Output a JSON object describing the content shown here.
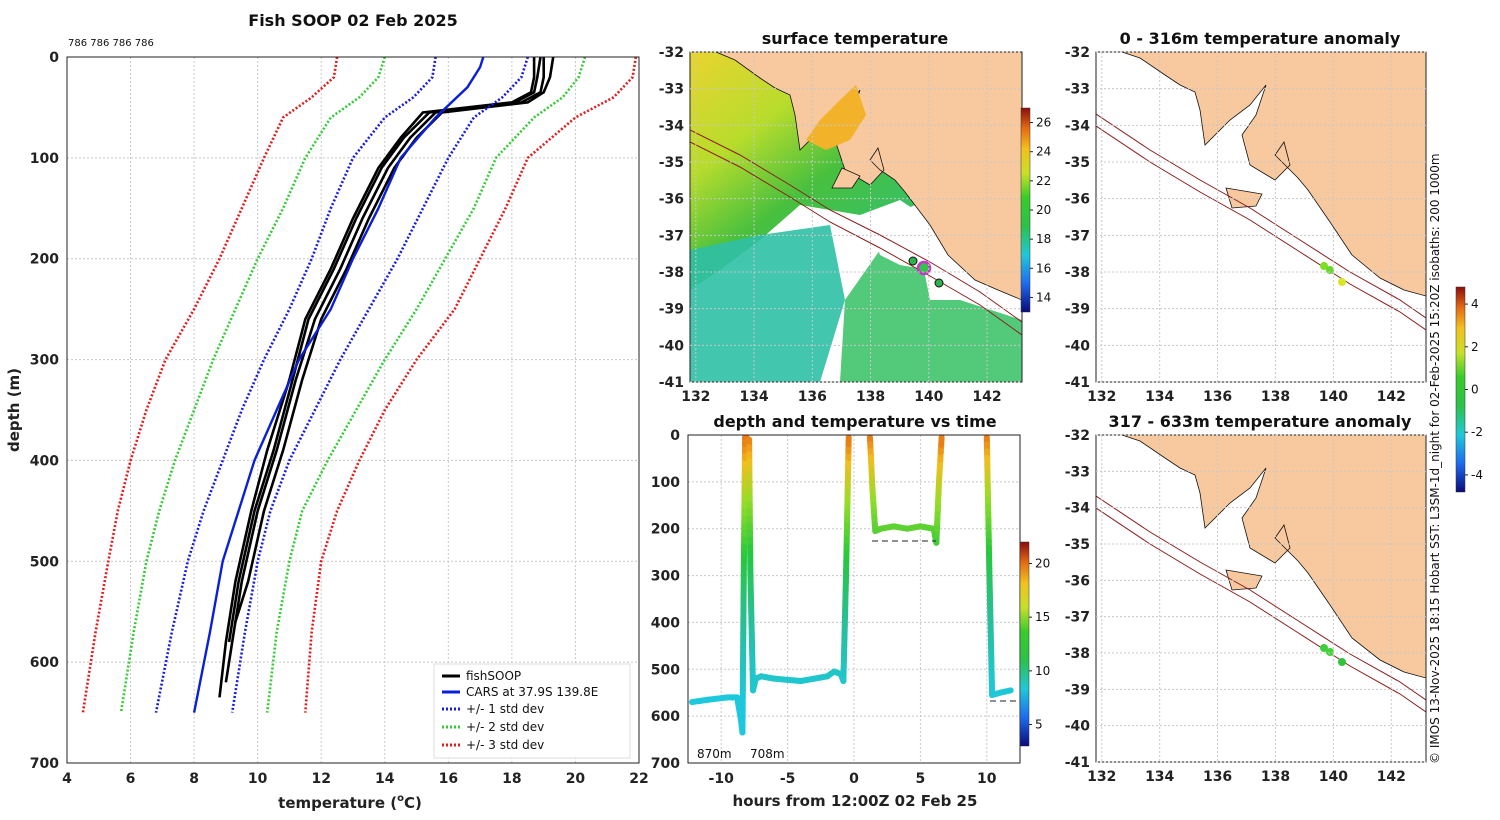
{
  "colors": {
    "land": "#f8c99e",
    "ocean_warm": "#d6e12b",
    "ocean_mid": "#33c24a",
    "ocean_cool": "#2fc6b9",
    "isobath": "#8b1a1a",
    "fish": "#000000",
    "cars": "#0a1fd8",
    "std1": "#1a1ae6",
    "std2": "#33cc33",
    "std3": "#e61a1a",
    "marker": "#cc33cc"
  },
  "profile": {
    "title": "Fish SOOP 02 Feb 2025",
    "ids": "786 786 786 786",
    "xlabel_prefix": "temperature (",
    "xlabel_sup": "o",
    "xlabel_suffix": "C)",
    "ylabel": "depth (m)",
    "xlim": [
      4,
      22
    ],
    "ylim": [
      0,
      700
    ],
    "xticks": [
      "4",
      "6",
      "8",
      "10",
      "12",
      "14",
      "16",
      "18",
      "20",
      "22"
    ],
    "yticks": [
      "0",
      "100",
      "200",
      "300",
      "400",
      "500",
      "600",
      "700"
    ],
    "legend": [
      "fishSOOP",
      "CARS at 37.9S 139.8E",
      "+/- 1 std dev",
      "+/- 2 std dev",
      "+/- 3 std dev"
    ]
  },
  "chart_data": [
    {
      "type": "line",
      "title": "Fish SOOP 02 Feb 2025",
      "xlabel": "temperature (oC)",
      "ylabel": "depth (m)",
      "xlim": [
        4,
        22
      ],
      "ylim": [
        700,
        0
      ],
      "series": [
        {
          "name": "fishSOOP 1",
          "x": [
            18.7,
            18.7,
            18.6,
            18.0,
            15.2,
            14.5,
            13.8,
            13.0,
            12.3,
            11.5,
            11.0,
            10.3,
            9.8,
            9.3,
            9.0,
            8.8
          ],
          "y": [
            0,
            20,
            35,
            45,
            55,
            80,
            110,
            160,
            210,
            260,
            320,
            390,
            450,
            520,
            580,
            635
          ]
        },
        {
          "name": "fishSOOP 2",
          "x": [
            19.0,
            19.0,
            18.9,
            18.3,
            15.6,
            14.8,
            14.1,
            13.3,
            12.6,
            11.8,
            11.2,
            10.6,
            10.0,
            9.5,
            9.2,
            9.0
          ],
          "y": [
            0,
            20,
            35,
            45,
            55,
            80,
            110,
            160,
            210,
            260,
            320,
            390,
            450,
            520,
            580,
            620
          ]
        },
        {
          "name": "fishSOOP 3",
          "x": [
            19.3,
            19.2,
            19.0,
            18.5,
            15.8,
            15.0,
            14.3,
            13.5,
            12.8,
            12.0,
            11.4,
            10.8,
            10.2,
            9.7,
            9.3
          ],
          "y": [
            0,
            20,
            35,
            45,
            55,
            80,
            110,
            160,
            210,
            260,
            320,
            390,
            450,
            520,
            560
          ]
        },
        {
          "name": "fishSOOP 4",
          "x": [
            18.9,
            18.8,
            18.7,
            18.1,
            15.4,
            14.6,
            13.9,
            13.1,
            12.4,
            11.6,
            11.1,
            10.5,
            9.9,
            9.4,
            9.1
          ],
          "y": [
            0,
            20,
            35,
            45,
            55,
            80,
            110,
            160,
            210,
            260,
            320,
            390,
            450,
            520,
            580
          ]
        },
        {
          "name": "CARS at 37.9S 139.8E",
          "x": [
            17.1,
            17.0,
            16.6,
            15.6,
            14.5,
            13.8,
            13.0,
            12.3,
            11.3,
            10.6,
            9.9,
            9.4,
            8.9,
            8.5,
            8.0
          ],
          "y": [
            0,
            10,
            30,
            60,
            100,
            150,
            200,
            250,
            300,
            350,
            400,
            450,
            500,
            570,
            650
          ]
        },
        {
          "name": "+1 std dev",
          "x": [
            18.5,
            18.3,
            17.7,
            16.8,
            16.0,
            15.2,
            14.4,
            13.5,
            12.6,
            11.8,
            11.0,
            10.4,
            10.0,
            9.6,
            9.2
          ],
          "y": [
            0,
            20,
            40,
            60,
            100,
            150,
            200,
            250,
            300,
            350,
            400,
            450,
            500,
            570,
            650
          ]
        },
        {
          "name": "-1 std dev",
          "x": [
            15.6,
            15.5,
            14.9,
            14.0,
            13.0,
            12.3,
            11.7,
            11.0,
            10.2,
            9.5,
            8.9,
            8.3,
            7.8,
            7.3,
            6.8
          ],
          "y": [
            0,
            20,
            40,
            60,
            100,
            150,
            200,
            250,
            300,
            350,
            400,
            450,
            500,
            570,
            650
          ]
        },
        {
          "name": "+2 std dev",
          "x": [
            20.3,
            20.1,
            19.6,
            18.7,
            17.5,
            16.8,
            15.9,
            15.0,
            14.0,
            13.1,
            12.2,
            11.4,
            11.0,
            10.6,
            10.3
          ],
          "y": [
            0,
            20,
            40,
            60,
            100,
            150,
            200,
            250,
            300,
            350,
            400,
            450,
            500,
            570,
            650
          ]
        },
        {
          "name": "-2 std dev",
          "x": [
            14.0,
            13.8,
            13.2,
            12.3,
            11.5,
            10.8,
            10.0,
            9.3,
            8.6,
            8.0,
            7.4,
            6.9,
            6.5,
            6.1,
            5.7
          ],
          "y": [
            0,
            20,
            40,
            60,
            100,
            150,
            200,
            250,
            300,
            350,
            400,
            450,
            500,
            570,
            650
          ]
        },
        {
          "name": "+3 std dev",
          "x": [
            21.9,
            21.8,
            21.2,
            20.0,
            18.5,
            17.8,
            17.0,
            16.2,
            15.0,
            14.0,
            13.2,
            12.5,
            12.0,
            11.7,
            11.5
          ],
          "y": [
            0,
            20,
            40,
            60,
            100,
            150,
            200,
            250,
            300,
            350,
            400,
            450,
            500,
            570,
            650
          ]
        },
        {
          "name": "-3 std dev",
          "x": [
            12.5,
            12.4,
            11.7,
            10.8,
            10.2,
            9.5,
            8.8,
            8.0,
            7.1,
            6.5,
            6.0,
            5.6,
            5.3,
            4.9,
            4.5
          ],
          "y": [
            0,
            20,
            40,
            60,
            100,
            150,
            200,
            250,
            300,
            350,
            400,
            450,
            500,
            570,
            650
          ]
        }
      ]
    },
    {
      "type": "line",
      "title": "depth and temperature vs time",
      "xlabel": "hours from 12:00Z 02 Feb 25",
      "xlim": [
        -12.5,
        12.5
      ],
      "ylim": [
        700,
        0
      ],
      "xticks": [
        "-10",
        "-5",
        "0",
        "5",
        "10"
      ],
      "yticks": [
        "0",
        "100",
        "200",
        "300",
        "400",
        "500",
        "600",
        "700"
      ],
      "x": [
        -12.2,
        -11,
        -9.5,
        -8.8,
        -8.5,
        -8.4,
        -8.3,
        -8.2,
        -8.1,
        -8.0,
        -7.9,
        -7.8,
        -7.6,
        -7.4,
        -7.0,
        -6,
        -4,
        -3,
        -2,
        -1.5,
        -1.0,
        -0.8,
        -0.6,
        -0.4,
        1.2,
        1.4,
        1.6,
        2,
        3,
        4,
        5,
        6,
        6.2,
        6.4,
        6.6,
        10.0,
        10.2,
        10.4,
        11,
        11.8
      ],
      "y": [
        570,
        565,
        560,
        560,
        610,
        635,
        300,
        5,
        5,
        20,
        10,
        300,
        545,
        520,
        515,
        520,
        525,
        520,
        515,
        505,
        510,
        525,
        300,
        5,
        5,
        120,
        205,
        200,
        195,
        200,
        195,
        200,
        230,
        100,
        5,
        5,
        300,
        555,
        550,
        545
      ],
      "annotations": [
        "870m",
        "708m"
      ],
      "colorbar": {
        "ticks": [
          "5",
          "10",
          "15",
          "20"
        ],
        "range": [
          3,
          22
        ]
      }
    },
    {
      "type": "heatmap",
      "title": "surface temperature",
      "xticks": [
        "132",
        "134",
        "136",
        "138",
        "140",
        "142"
      ],
      "yticks": [
        "-32",
        "-33",
        "-34",
        "-35",
        "-36",
        "-37",
        "-38",
        "-39",
        "-40",
        "-41"
      ],
      "colorbar": {
        "ticks": [
          "14",
          "16",
          "18",
          "20",
          "22",
          "24",
          "26"
        ],
        "range": [
          13,
          27
        ]
      }
    },
    {
      "type": "heatmap",
      "title": "0 - 316m temperature anomaly",
      "xticks": [
        "132",
        "134",
        "136",
        "138",
        "140",
        "142"
      ],
      "yticks": [
        "-32",
        "-33",
        "-34",
        "-35",
        "-36",
        "-37",
        "-38",
        "-39",
        "-40",
        "-41"
      ]
    },
    {
      "type": "heatmap",
      "title": "317 - 633m temperature anomaly",
      "xticks": [
        "132",
        "134",
        "136",
        "138",
        "140",
        "142"
      ],
      "yticks": [
        "-32",
        "-33",
        "-34",
        "-35",
        "-36",
        "-37",
        "-38",
        "-39",
        "-40",
        "-41"
      ],
      "colorbar": {
        "ticks": [
          "-4",
          "-2",
          "0",
          "2",
          "4"
        ],
        "range": [
          -4.8,
          4.8
        ]
      }
    }
  ],
  "timeplot": {
    "title": "depth and temperature vs time",
    "xlabel": "hours from 12:00Z 02 Feb 25",
    "ann1": "870m",
    "ann2": "708m"
  },
  "maps": {
    "sst_title": "surface temperature",
    "anom1_title": "0 - 316m temperature anomaly",
    "anom2_title": "317 - 633m temperature anomaly",
    "xticks": [
      "132",
      "134",
      "136",
      "138",
      "140",
      "142"
    ],
    "yticks": [
      "-32",
      "-33",
      "-34",
      "-35",
      "-36",
      "-37",
      "-38",
      "-39",
      "-40",
      "-41"
    ],
    "sst_cbar": [
      "14",
      "16",
      "18",
      "20",
      "22",
      "24",
      "26"
    ],
    "time_cbar": [
      "5",
      "10",
      "15",
      "20"
    ],
    "anom_cbar": [
      "-4",
      "-2",
      "0",
      "2",
      "4"
    ]
  },
  "credit": "© IMOS 13-Nov-2025 18:15 Hobart SST: L3SM-1d_night for 02-Feb-2025 15:20Z isobaths: 200  1000m"
}
